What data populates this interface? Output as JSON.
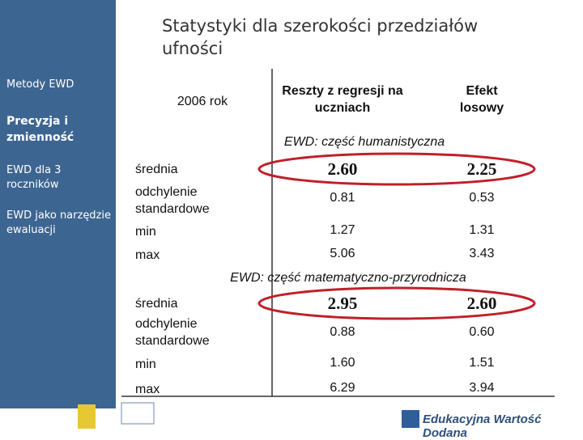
{
  "title": "Statystyki dla szerokości przedziałów ufności",
  "sidebar": [
    "Metody EWD",
    "Precyzja i zmienność",
    "EWD dla 3 roczników",
    "EWD jako narzędzie ewaluacji"
  ],
  "table": {
    "header": [
      "2006 rok",
      "Reszty z regresji na uczniach",
      "Efekt losowy"
    ],
    "sections": [
      {
        "title": "EWD: część humanistyczna",
        "rows": [
          [
            "średnia",
            "2.60",
            "2.25"
          ],
          [
            "odchylenie standardowe",
            "0.81",
            "0.53"
          ],
          [
            "min",
            "1.27",
            "1.31"
          ],
          [
            "max",
            "5.06",
            "3.43"
          ]
        ]
      },
      {
        "title": "EWD: część matematyczno-przyrodnicza",
        "rows": [
          [
            "średnia",
            "2.95",
            "2.60"
          ],
          [
            "odchylenie standardowe",
            "0.88",
            "0.60"
          ],
          [
            "min",
            "1.60",
            "1.51"
          ],
          [
            "max",
            "6.29",
            "3.94"
          ]
        ]
      }
    ]
  },
  "footer": "Edukacyjna Wartość Dodana"
}
